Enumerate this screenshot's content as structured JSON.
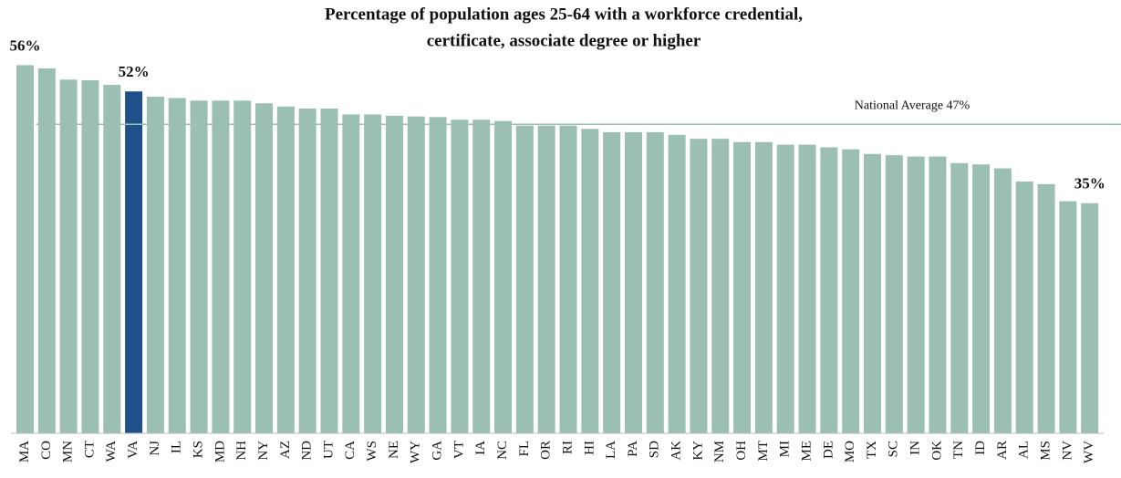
{
  "chart_data": {
    "type": "bar",
    "title_lines": [
      "Percentage of population ages 25-64 with a workforce credential,",
      "certificate, associate degree or higher"
    ],
    "categories": [
      "MA",
      "CO",
      "MN",
      "CT",
      "WA",
      "VA",
      "NJ",
      "IL",
      "KS",
      "MD",
      "NH",
      "NY",
      "AZ",
      "ND",
      "UT",
      "CA",
      "WS",
      "NE",
      "WY",
      "GA",
      "VT",
      "IA",
      "NC",
      "FL",
      "OR",
      "RI",
      "HI",
      "LA",
      "PA",
      "SD",
      "AK",
      "KY",
      "NM",
      "OH",
      "MT",
      "MI",
      "ME",
      "DE",
      "MO",
      "TX",
      "SC",
      "IN",
      "OK",
      "TN",
      "ID",
      "AR",
      "AL",
      "MS",
      "NV",
      "WV"
    ],
    "values": [
      56,
      55.5,
      53.8,
      53.7,
      53,
      52,
      51.2,
      51,
      50.6,
      50.6,
      50.6,
      50.2,
      49.7,
      49.4,
      49.4,
      48.5,
      48.5,
      48.3,
      48.2,
      48.1,
      47.7,
      47.7,
      47.5,
      46.8,
      46.8,
      46.8,
      46.3,
      45.8,
      45.8,
      45.8,
      45.4,
      44.8,
      44.8,
      44.3,
      44.3,
      43.9,
      43.9,
      43.5,
      43.2,
      42.5,
      42.3,
      42.1,
      42.1,
      41.1,
      40.9,
      40.3,
      38.3,
      37.9,
      35.3,
      35
    ],
    "value_labels": [
      "56%",
      null,
      null,
      null,
      null,
      "52%",
      null,
      null,
      null,
      null,
      null,
      null,
      null,
      null,
      null,
      null,
      null,
      null,
      null,
      null,
      null,
      null,
      null,
      null,
      null,
      null,
      null,
      null,
      null,
      null,
      null,
      null,
      null,
      null,
      null,
      null,
      null,
      null,
      null,
      null,
      null,
      null,
      null,
      null,
      null,
      null,
      null,
      null,
      null,
      "35%"
    ],
    "color": "#9cbfb3",
    "highlight": "VA",
    "highlight_color": "#1f5089",
    "reference_line": {
      "value": 47,
      "label": "National Average 47%"
    },
    "ylim": [
      0,
      58
    ]
  }
}
